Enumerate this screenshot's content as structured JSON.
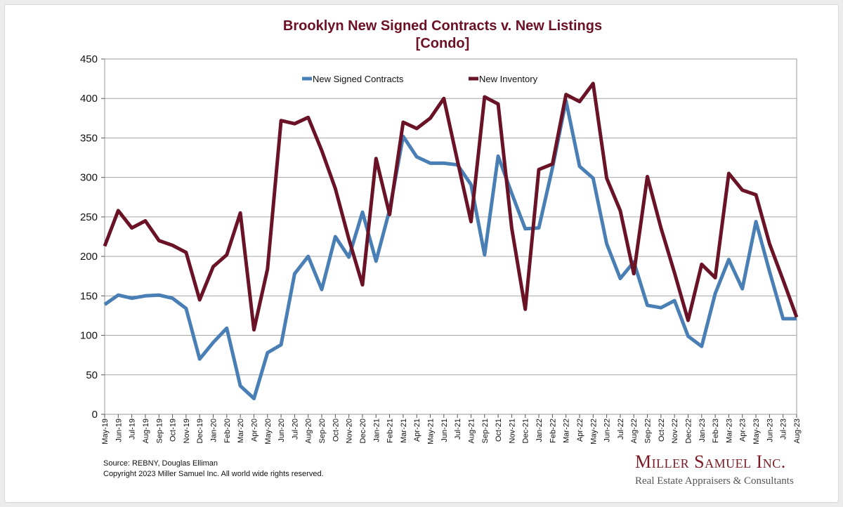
{
  "chart_data": {
    "type": "line",
    "title": "Brooklyn New Signed Contracts v. New Listings",
    "subtitle": "[Condo]",
    "xlabel": "",
    "ylabel": "",
    "ylim": [
      0,
      450
    ],
    "yticks": [
      0,
      50,
      100,
      150,
      200,
      250,
      300,
      350,
      400,
      450
    ],
    "grid": true,
    "legend_position": "top",
    "categories": [
      "May-19",
      "Jun-19",
      "Jul-19",
      "Aug-19",
      "Sep-19",
      "Oct-19",
      "Nov-19",
      "Dec-19",
      "Jan-20",
      "Feb-20",
      "Mar-20",
      "Apr-20",
      "May-20",
      "Jun-20",
      "Jul-20",
      "Aug-20",
      "Sep-20",
      "Oct-20",
      "Nov-20",
      "Dec-20",
      "Jan-21",
      "Feb-21",
      "Mar-21",
      "Apr-21",
      "May-21",
      "Jun-21",
      "Jul-21",
      "Aug-21",
      "Sep-21",
      "Oct-21",
      "Nov-21",
      "Dec-21",
      "Jan-22",
      "Feb-22",
      "Mar-22",
      "Apr-22",
      "May-22",
      "Jun-22",
      "Jul-22",
      "Aug-22",
      "Sep-22",
      "Oct-22",
      "Nov-22",
      "Dec-22",
      "Jan-23",
      "Feb-23",
      "Mar-23",
      "Apr-23",
      "May-23",
      "Jun-23",
      "Jul-23",
      "Aug-23"
    ],
    "series": [
      {
        "name": "New Signed Contracts",
        "color": "#4a7fb5",
        "values": [
          139,
          151,
          147,
          150,
          151,
          147,
          134,
          70,
          91,
          109,
          36,
          20,
          78,
          88,
          178,
          200,
          158,
          225,
          199,
          256,
          194,
          259,
          352,
          326,
          318,
          318,
          316,
          291,
          202,
          327,
          280,
          235,
          236,
          312,
          397,
          314,
          299,
          216,
          172,
          193,
          138,
          135,
          144,
          99,
          86,
          153,
          196,
          159,
          244,
          181,
          121,
          121
        ]
      },
      {
        "name": "New Inventory",
        "color": "#6a1226",
        "values": [
          213,
          258,
          236,
          245,
          220,
          214,
          205,
          145,
          187,
          202,
          255,
          107,
          184,
          372,
          368,
          376,
          334,
          286,
          222,
          164,
          324,
          253,
          370,
          362,
          375,
          400,
          321,
          244,
          402,
          393,
          236,
          133,
          310,
          317,
          405,
          396,
          419,
          299,
          258,
          178,
          301,
          236,
          179,
          119,
          190,
          173,
          305,
          284,
          278,
          216,
          170,
          123
        ]
      }
    ]
  },
  "source_text": "Source: REBNY, Douglas Elliman",
  "copyright_text": "Copyright 2023 Miller Samuel Inc.  All world wide rights reserved.",
  "brand": {
    "name": "Miller Samuel Inc.",
    "tagline": "Real Estate Appraisers & Consultants"
  }
}
